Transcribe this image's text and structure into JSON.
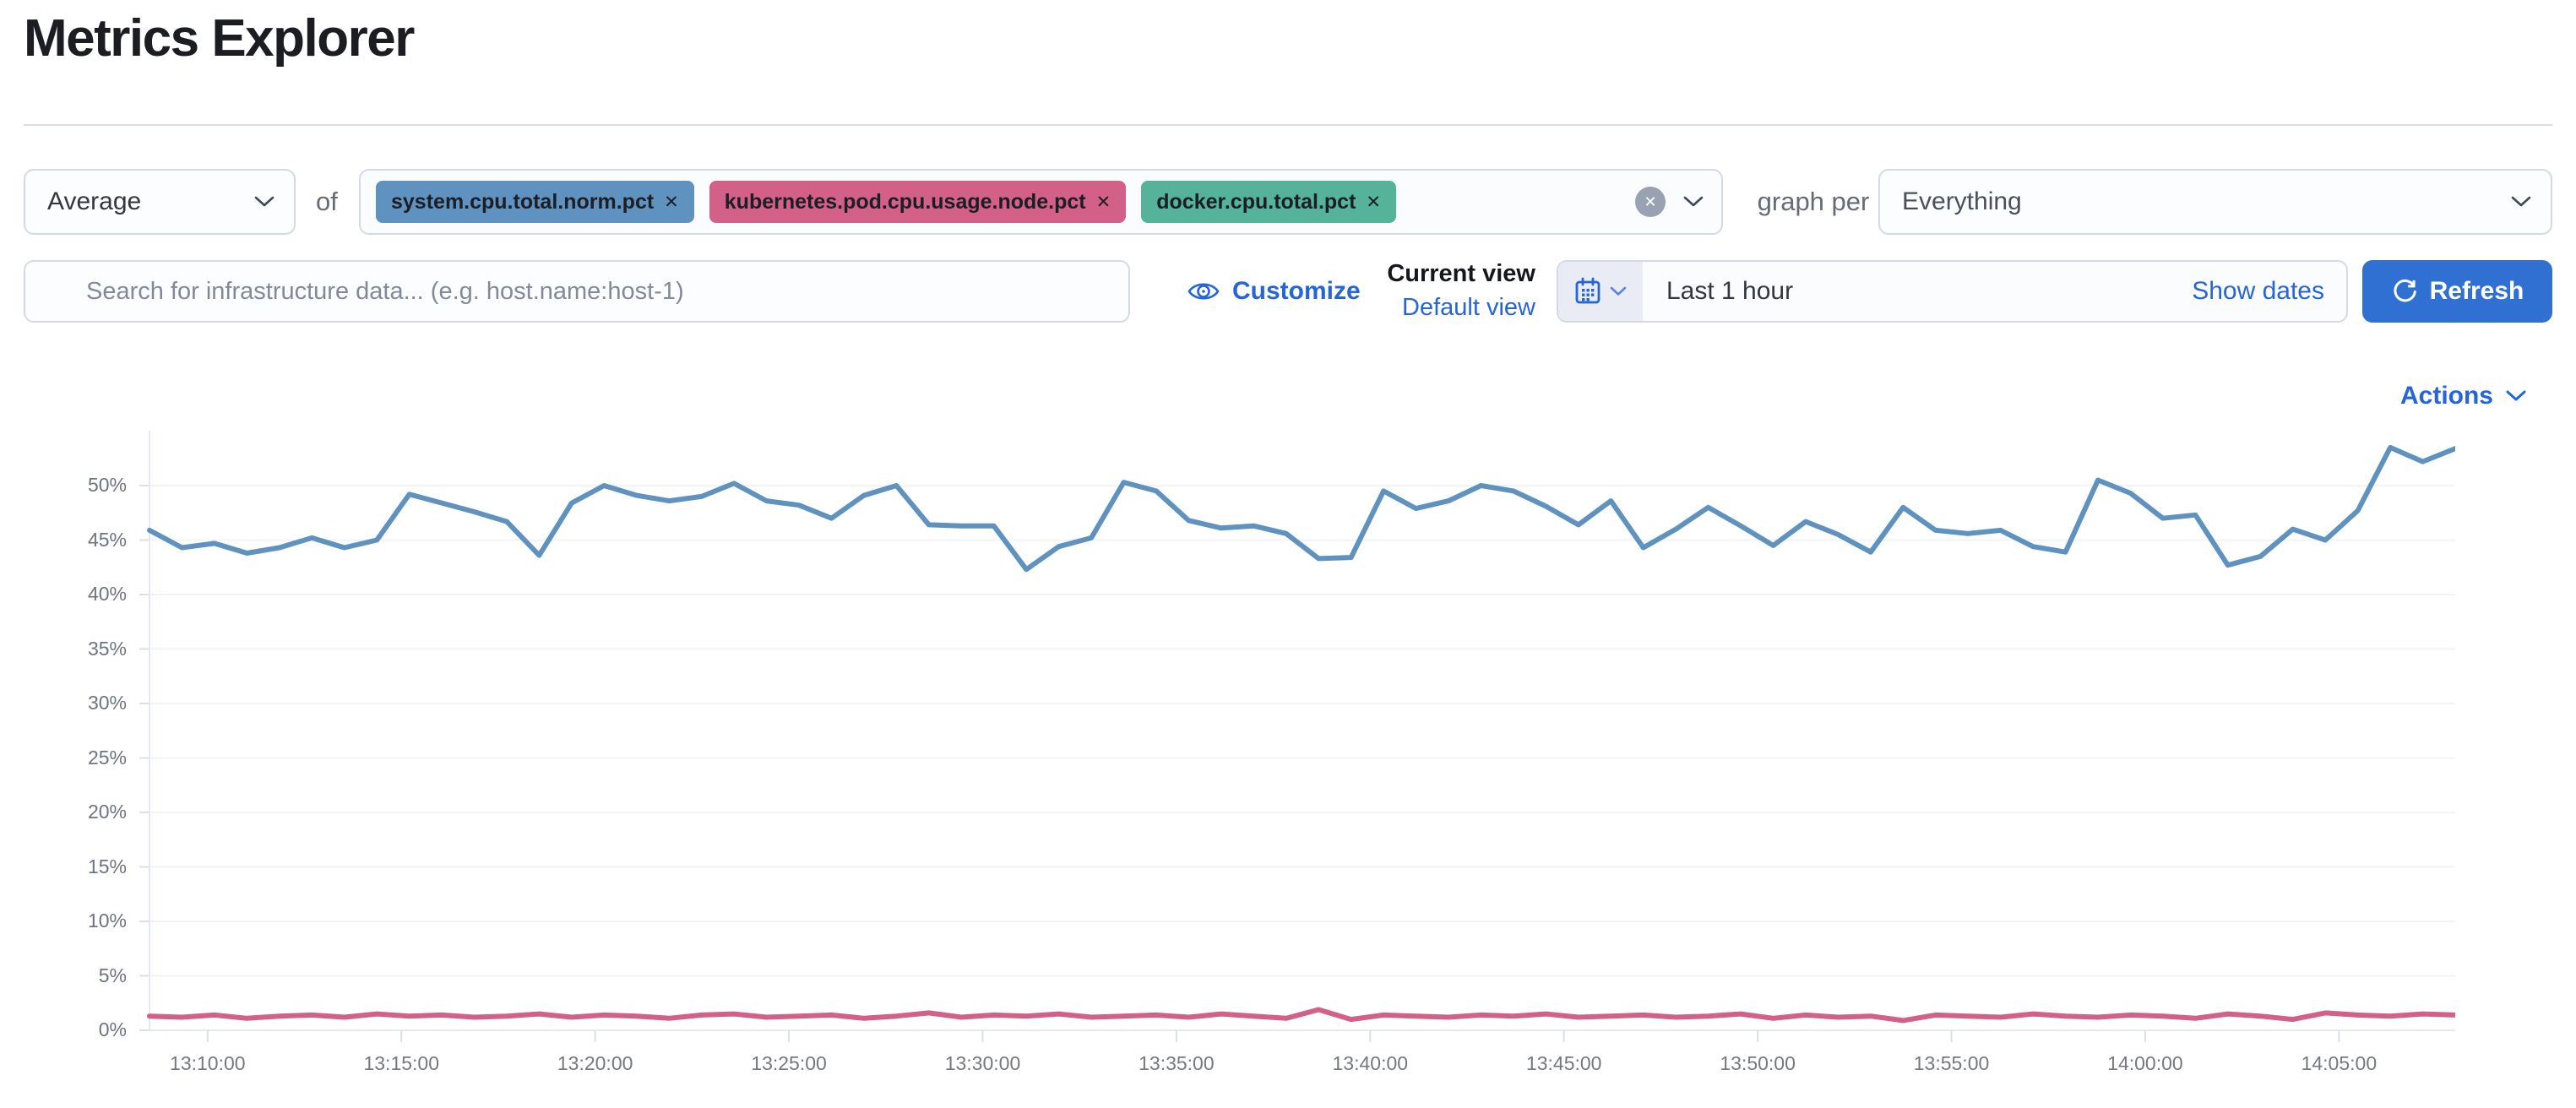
{
  "page": {
    "title": "Metrics Explorer"
  },
  "toolbar": {
    "aggregation": {
      "value": "Average"
    },
    "of_label": "of",
    "metrics": [
      {
        "label": "system.cpu.total.norm.pct",
        "color": "#6092C0"
      },
      {
        "label": "kubernetes.pod.cpu.usage.node.pct",
        "color": "#D36086"
      },
      {
        "label": "docker.cpu.total.pct",
        "color": "#54B399"
      }
    ],
    "graph_per_label": "graph per",
    "group_by": {
      "value": "Everything"
    }
  },
  "search": {
    "placeholder": "Search for infrastructure data... (e.g. host.name:host-1)"
  },
  "view_controls": {
    "customize_label": "Customize",
    "current_view_label": "Current view",
    "view_name": "Default view"
  },
  "time_picker": {
    "value": "Last 1 hour",
    "show_dates_label": "Show dates",
    "refresh_label": "Refresh"
  },
  "actions": {
    "label": "Actions"
  },
  "icons": {
    "remove": "✕"
  },
  "colors": {
    "link_blue": "#2565D8",
    "refresh_button": "#2F70D2",
    "series_blue": "#6092C0",
    "series_pink": "#D36086",
    "tag_green": "#54B399"
  },
  "chart_data": {
    "type": "line",
    "title": "",
    "xlabel": "",
    "ylabel": "",
    "legend": "none",
    "grid": "horizontal-faint",
    "x_axis": {
      "start": "13:08:30",
      "end": "14:08:00",
      "duration_min": 59.5,
      "tick_labels": [
        "13:10:00",
        "13:15:00",
        "13:20:00",
        "13:25:00",
        "13:30:00",
        "13:35:00",
        "13:40:00",
        "13:45:00",
        "13:50:00",
        "13:55:00",
        "14:00:00",
        "14:05:00"
      ],
      "tick_offsets_min": [
        1.5,
        6.5,
        11.5,
        16.5,
        21.5,
        26.5,
        31.5,
        36.5,
        41.5,
        46.5,
        51.5,
        56.5
      ]
    },
    "y_axis": {
      "unit": "%",
      "min": 0,
      "max": 55,
      "tick_step": 5,
      "tick_labels": [
        "0%",
        "5%",
        "10%",
        "15%",
        "20%",
        "25%",
        "30%",
        "35%",
        "40%",
        "45%",
        "50%"
      ]
    },
    "series": [
      {
        "name": "system.cpu.total.norm.pct",
        "color": "#6092C0",
        "values": [
          45.9,
          44.3,
          44.7,
          43.8,
          44.3,
          45.2,
          44.3,
          45.0,
          49.2,
          48.4,
          47.6,
          46.7,
          43.6,
          48.4,
          50.0,
          49.1,
          48.6,
          49.0,
          50.2,
          48.6,
          48.2,
          47.0,
          49.1,
          50.0,
          46.4,
          46.3,
          46.3,
          42.3,
          44.4,
          45.2,
          50.3,
          49.5,
          46.8,
          46.1,
          46.3,
          45.6,
          43.3,
          43.4,
          49.5,
          47.9,
          48.6,
          50.0,
          49.5,
          48.1,
          46.4,
          48.6,
          44.3,
          46.0,
          48.0,
          46.3,
          44.5,
          46.7,
          45.5,
          43.9,
          48.0,
          45.9,
          45.6,
          45.9,
          44.4,
          43.9,
          50.5,
          49.3,
          47.0,
          47.3,
          42.7,
          43.5,
          46.0,
          45.0,
          47.7,
          53.5,
          52.2,
          53.4
        ]
      },
      {
        "name": "kubernetes.pod.cpu.usage.node.pct",
        "color": "#D36086",
        "values": [
          1.3,
          1.2,
          1.4,
          1.1,
          1.3,
          1.4,
          1.2,
          1.5,
          1.3,
          1.4,
          1.2,
          1.3,
          1.5,
          1.2,
          1.4,
          1.3,
          1.1,
          1.4,
          1.5,
          1.2,
          1.3,
          1.4,
          1.1,
          1.3,
          1.6,
          1.2,
          1.4,
          1.3,
          1.5,
          1.2,
          1.3,
          1.4,
          1.2,
          1.5,
          1.3,
          1.1,
          1.9,
          1.0,
          1.4,
          1.3,
          1.2,
          1.4,
          1.3,
          1.5,
          1.2,
          1.3,
          1.4,
          1.2,
          1.3,
          1.5,
          1.1,
          1.4,
          1.2,
          1.3,
          0.9,
          1.4,
          1.3,
          1.2,
          1.5,
          1.3,
          1.2,
          1.4,
          1.3,
          1.1,
          1.5,
          1.3,
          1.0,
          1.6,
          1.4,
          1.3,
          1.5,
          1.4
        ]
      }
    ]
  }
}
